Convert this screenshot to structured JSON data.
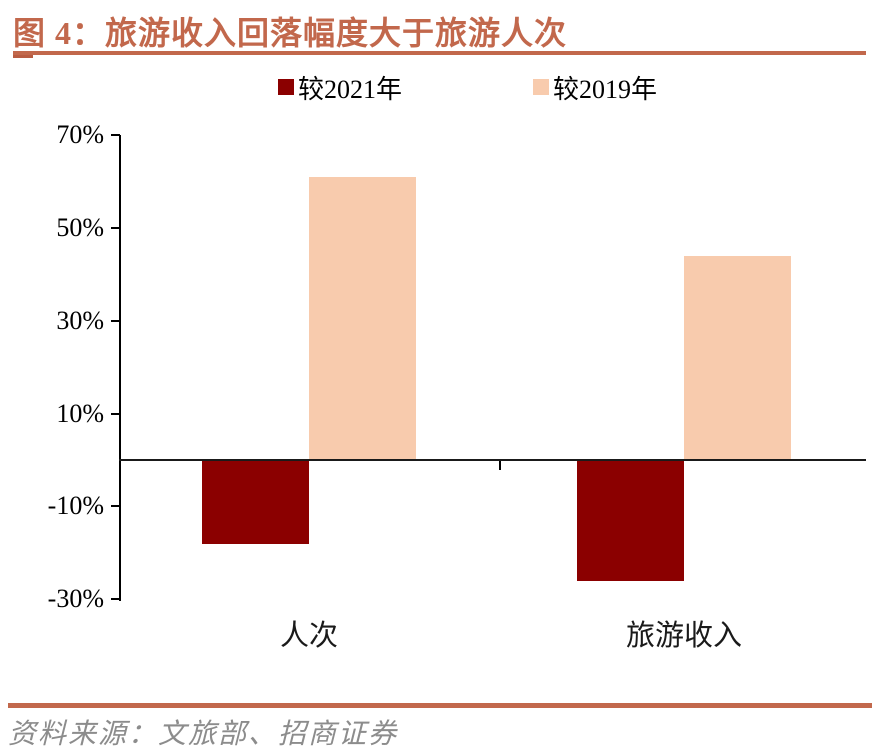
{
  "figure": {
    "title": "图 4：旅游收入回落幅度大于旅游人次",
    "source": "资料来源：文旅部、招商证券"
  },
  "chart_data": {
    "type": "bar",
    "title": "图 4：旅游收入回落幅度大于旅游人次",
    "categories": [
      "人次",
      "旅游收入"
    ],
    "series": [
      {
        "name": "较2021年",
        "color": "#8B0000",
        "values": [
          -18,
          -26
        ]
      },
      {
        "name": "较2019年",
        "color": "#F8CBAD",
        "values": [
          61,
          44
        ]
      }
    ],
    "ylim": [
      -30,
      70
    ],
    "yticks": [
      70,
      50,
      30,
      10,
      -10,
      -30
    ],
    "ytick_labels": [
      "70%",
      "50%",
      "30%",
      "10%",
      "-10%",
      "-30%"
    ],
    "xlabel": "",
    "ylabel": "",
    "grid": false,
    "legend_position": "top-center",
    "source": "资料来源：文旅部、招商证券",
    "accent_color": "#C2684C"
  }
}
